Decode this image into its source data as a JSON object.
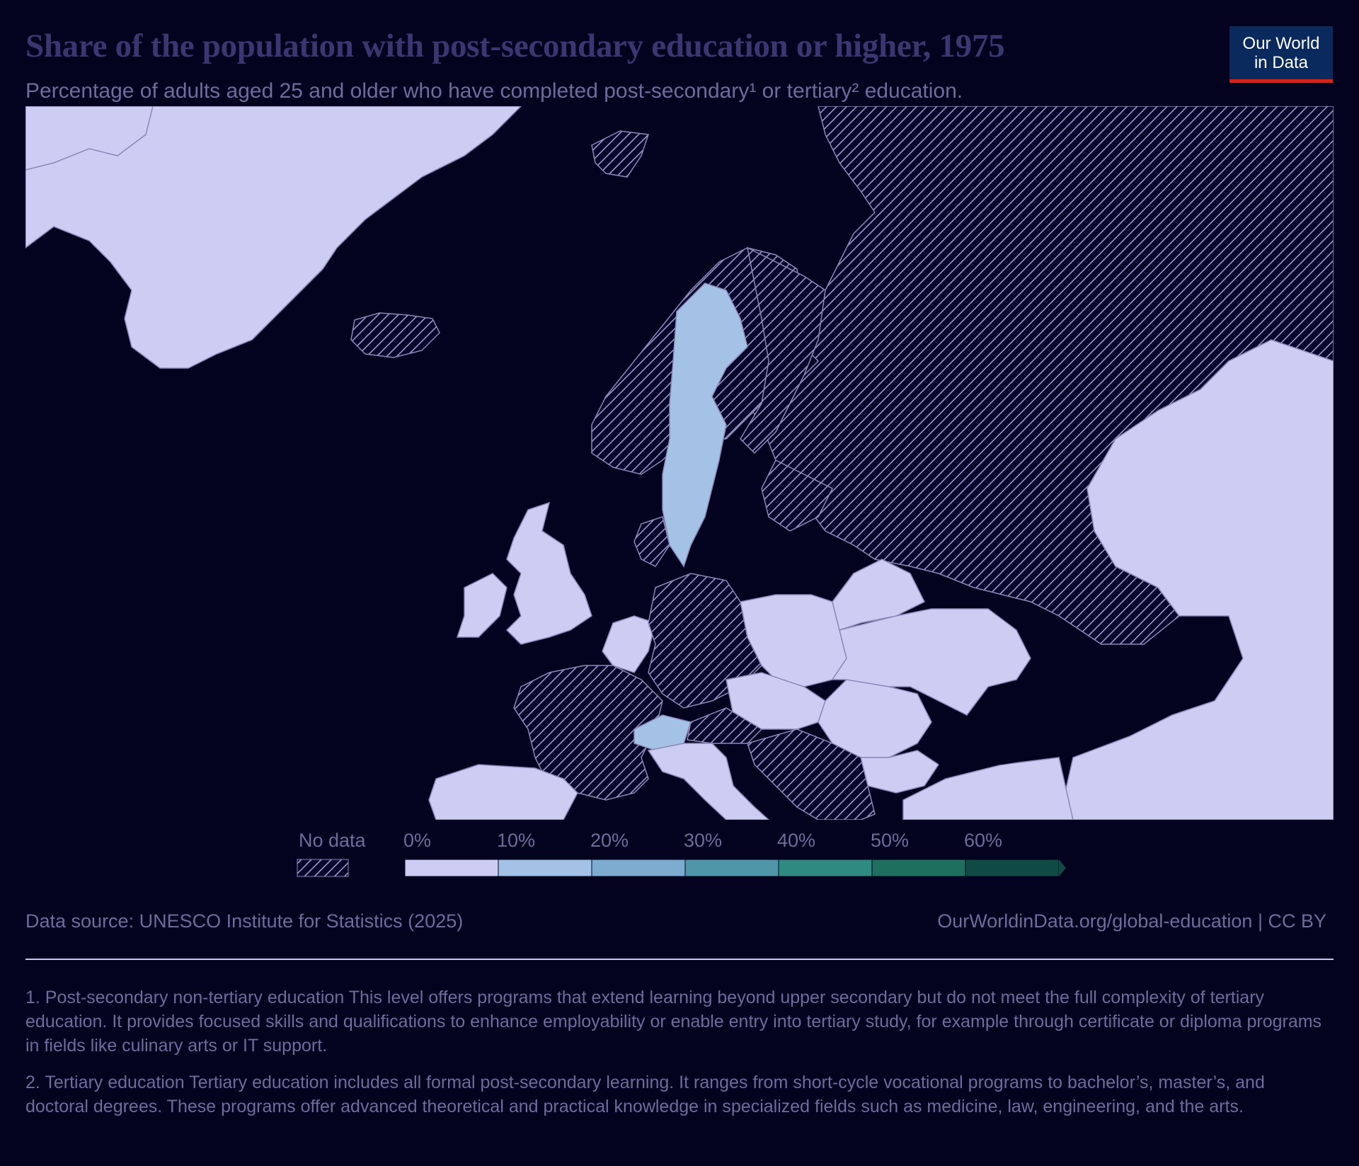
{
  "header": {
    "title": "Share of the population with post-secondary education or higher, 1975",
    "subtitle": "Percentage of adults aged 25 and older who have completed post-secondary¹ or tertiary² education."
  },
  "logo": {
    "line1": "Our World",
    "line2": "in Data"
  },
  "chart_data": {
    "type": "choropleth",
    "region": "Europe",
    "year": 1975,
    "legend": {
      "no_data_label": "No data",
      "bins": [
        {
          "label": "0%",
          "color": "#cdcdf4"
        },
        {
          "label": "10%",
          "color": "#a4c2e6"
        },
        {
          "label": "20%",
          "color": "#7eabd0"
        },
        {
          "label": "30%",
          "color": "#4e96a8"
        },
        {
          "label": "40%",
          "color": "#2f8a82"
        },
        {
          "label": "50%",
          "color": "#1f6f5e"
        },
        {
          "label": "60%",
          "color": "#0f4a45"
        }
      ]
    },
    "regions": [
      {
        "name": "Sweden",
        "bin": "10–20%"
      },
      {
        "name": "Switzerland",
        "bin": "10–20%"
      },
      {
        "name": "Spain",
        "bin": "0–10%"
      },
      {
        "name": "Portugal",
        "bin": "0–10%"
      },
      {
        "name": "Italy",
        "bin": "0–10%"
      },
      {
        "name": "United Kingdom",
        "bin": "0–10%"
      },
      {
        "name": "Ireland",
        "bin": "0–10%"
      },
      {
        "name": "Poland",
        "bin": "0–10%"
      },
      {
        "name": "Belarus",
        "bin": "0–10%"
      },
      {
        "name": "Ukraine",
        "bin": "0–10%"
      },
      {
        "name": "Romania",
        "bin": "0–10%"
      },
      {
        "name": "Hungary",
        "bin": "0–10%"
      },
      {
        "name": "Bulgaria",
        "bin": "0–10%"
      },
      {
        "name": "Czechia",
        "bin": "0–10%"
      },
      {
        "name": "Belgium",
        "bin": "0–10%"
      },
      {
        "name": "Netherlands",
        "bin": "0–10%"
      },
      {
        "name": "France",
        "bin": "No data"
      },
      {
        "name": "Germany",
        "bin": "No data"
      },
      {
        "name": "Norway",
        "bin": "No data"
      },
      {
        "name": "Finland",
        "bin": "No data"
      },
      {
        "name": "Russia",
        "bin": "No data"
      },
      {
        "name": "Iceland",
        "bin": "No data"
      },
      {
        "name": "Balkans",
        "bin": "No data"
      },
      {
        "name": "Austria",
        "bin": "No data"
      },
      {
        "name": "Denmark",
        "bin": "No data"
      },
      {
        "name": "Baltic states",
        "bin": "No data"
      }
    ]
  },
  "footer": {
    "source": "Data source: UNESCO Institute for Statistics (2025)",
    "url": "OurWorldinData.org/global-education | CC BY",
    "note1": "1. Post-secondary non-tertiary education This level offers programs that extend learning beyond upper secondary but do not meet the full complexity of tertiary education. It provides focused skills and qualifications to enhance employability or enable entry into tertiary study, for example through certificate or diploma programs in fields like culinary arts or IT support.",
    "note2": "2. Tertiary education Tertiary education includes all formal post-secondary learning. It ranges from short-cycle vocational programs to bachelor’s, master’s, and doctoral degrees. These programs offer advanced theoretical and practical knowledge in specialized fields such as medicine, law, engineering, and the arts."
  }
}
